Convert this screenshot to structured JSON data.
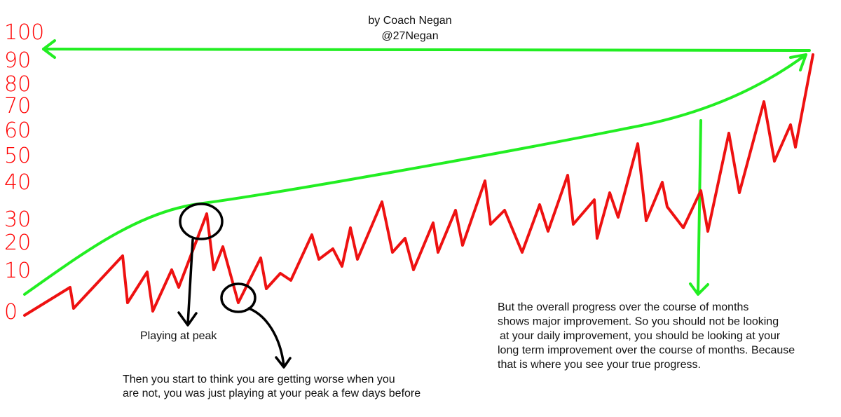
{
  "header": {
    "author": "by Coach Negan",
    "handle": "@27Negan"
  },
  "scale_labels": [
    "100",
    "90",
    "80",
    "70",
    "60",
    "50",
    "40",
    "30",
    "20",
    "10",
    "0"
  ],
  "annotations": {
    "peak": "Playing at peak",
    "worse": [
      "Then you start to think you are getting worse when you",
      "are not, you was just playing at your peak a few days before"
    ],
    "overall": [
      "But the overall progress over the course of months",
      "shows major improvement. So you should not be looking",
      "at your daily improvement, you should be looking at your",
      "long term improvement over the course of months. Because",
      "that is where you see your true progress."
    ]
  }
}
